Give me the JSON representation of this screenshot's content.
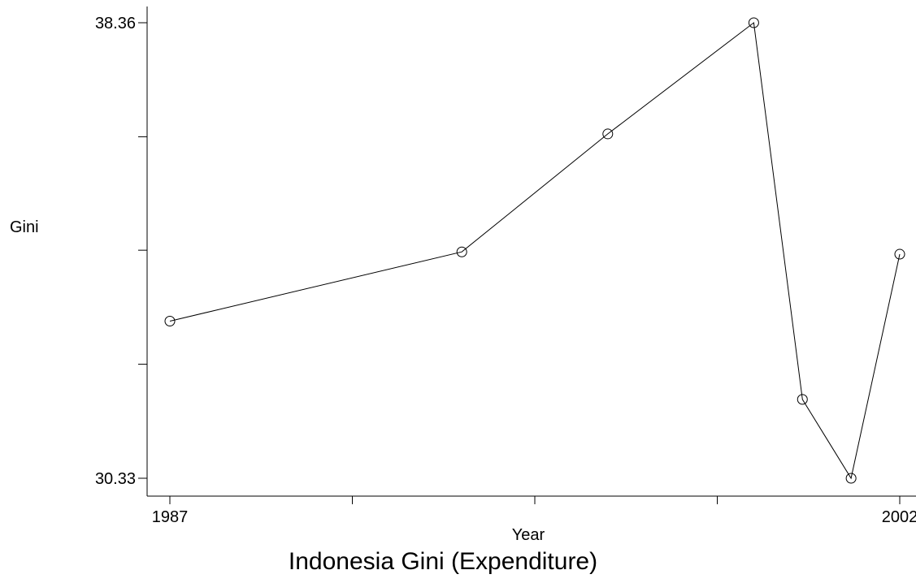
{
  "chart_data": {
    "type": "line",
    "title": "Indonesia Gini (Expenditure)",
    "xlabel": "Year",
    "ylabel": "Gini",
    "xlim": [
      1987,
      2002
    ],
    "ylim": [
      30.33,
      38.36
    ],
    "x_tick_values": [
      1987,
      1990.75,
      1994.5,
      1998.25,
      2002
    ],
    "x_tick_labels": [
      "1987",
      "",
      "",
      "",
      "2002"
    ],
    "y_tick_values": [
      30.33,
      32.34,
      34.35,
      36.35,
      38.36
    ],
    "y_tick_labels": [
      "30.33",
      "",
      "",
      "",
      "38.36"
    ],
    "grid": false,
    "marker": "open-circle",
    "line_color": "#000000",
    "series": [
      {
        "x": [
          1987,
          1993,
          1996,
          1999,
          2000,
          2001,
          2002
        ],
        "y": [
          33.1,
          34.32,
          36.4,
          38.36,
          31.72,
          30.33,
          34.28
        ]
      }
    ]
  }
}
